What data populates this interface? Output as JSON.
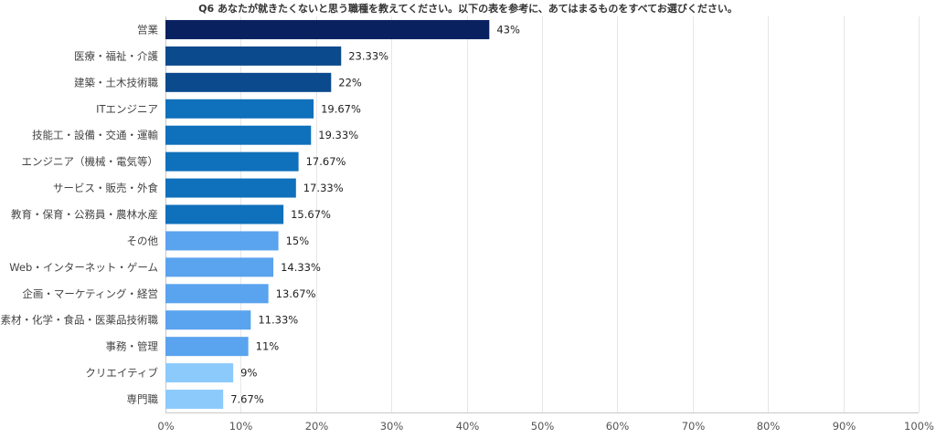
{
  "chart_data": {
    "type": "bar",
    "orientation": "horizontal",
    "title": "Q6 あなたが就きたくないと思う職種を教えてください。以下の表を参考に、あてはまるものをすべてお選びください。",
    "categories": [
      "営業",
      "医療・福祉・介護",
      "建築・土木技術職",
      "ITエンジニア",
      "技能工・設備・交通・運輸",
      "エンジニア（機械・電気等）",
      "サービス・販売・外食",
      "教育・保育・公務員・農林水産",
      "その他",
      "Web・インターネット・ゲーム",
      "企画・マーケティング・経営",
      "素材・化学・食品・医薬品技術職",
      "事務・管理",
      "クリエイティブ",
      "専門職"
    ],
    "values": [
      43,
      23.33,
      22,
      19.67,
      19.33,
      17.67,
      17.33,
      15.67,
      15,
      14.33,
      13.67,
      11.33,
      11,
      9,
      7.67
    ],
    "value_labels": [
      "43%",
      "23.33%",
      "22%",
      "19.67%",
      "19.33%",
      "17.67%",
      "17.33%",
      "15.67%",
      "15%",
      "14.33%",
      "13.67%",
      "11.33%",
      "11%",
      "9%",
      "7.67%"
    ],
    "colors": [
      "#0a2160",
      "#0b4a8c",
      "#0b4a8c",
      "#0f70bb",
      "#0f70bb",
      "#0f70bb",
      "#0f70bb",
      "#0f70bb",
      "#5aa3ee",
      "#5aa3ee",
      "#5aa3ee",
      "#5aa3ee",
      "#5aa3ee",
      "#8ccafb",
      "#8ccafb"
    ],
    "xlim": [
      0,
      100
    ],
    "x_ticks": [
      0,
      10,
      20,
      30,
      40,
      50,
      60,
      70,
      80,
      90,
      100
    ],
    "x_tick_labels": [
      "0%",
      "10%",
      "20%",
      "30%",
      "40%",
      "50%",
      "60%",
      "70%",
      "80%",
      "90%",
      "100%"
    ],
    "grid": true,
    "legend": "none"
  }
}
